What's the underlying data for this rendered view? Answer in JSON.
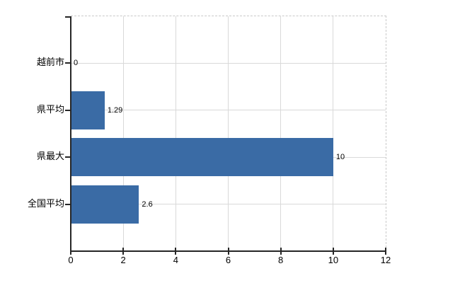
{
  "chart_data": {
    "type": "bar",
    "orientation": "horizontal",
    "title": "",
    "categories": [
      "越前市",
      "県平均",
      "県最大",
      "全国平均"
    ],
    "values": [
      0,
      1.29,
      10,
      2.6
    ],
    "value_labels": [
      "0",
      "1.29",
      "10",
      "2.6"
    ],
    "xticks": [
      0,
      2,
      4,
      6,
      8,
      10,
      12
    ],
    "xtick_labels": [
      "0",
      "2",
      "4",
      "6",
      "8",
      "10",
      "12"
    ],
    "xlim": [
      0,
      12
    ],
    "grid": true,
    "legend": "none",
    "colors": {
      "bar": "#3a6ba5",
      "gridline": "#d9d9d9",
      "dashed_border": "#c9c9c9",
      "axis": "#262626",
      "text": "#000000",
      "background": "#ffffff"
    }
  }
}
